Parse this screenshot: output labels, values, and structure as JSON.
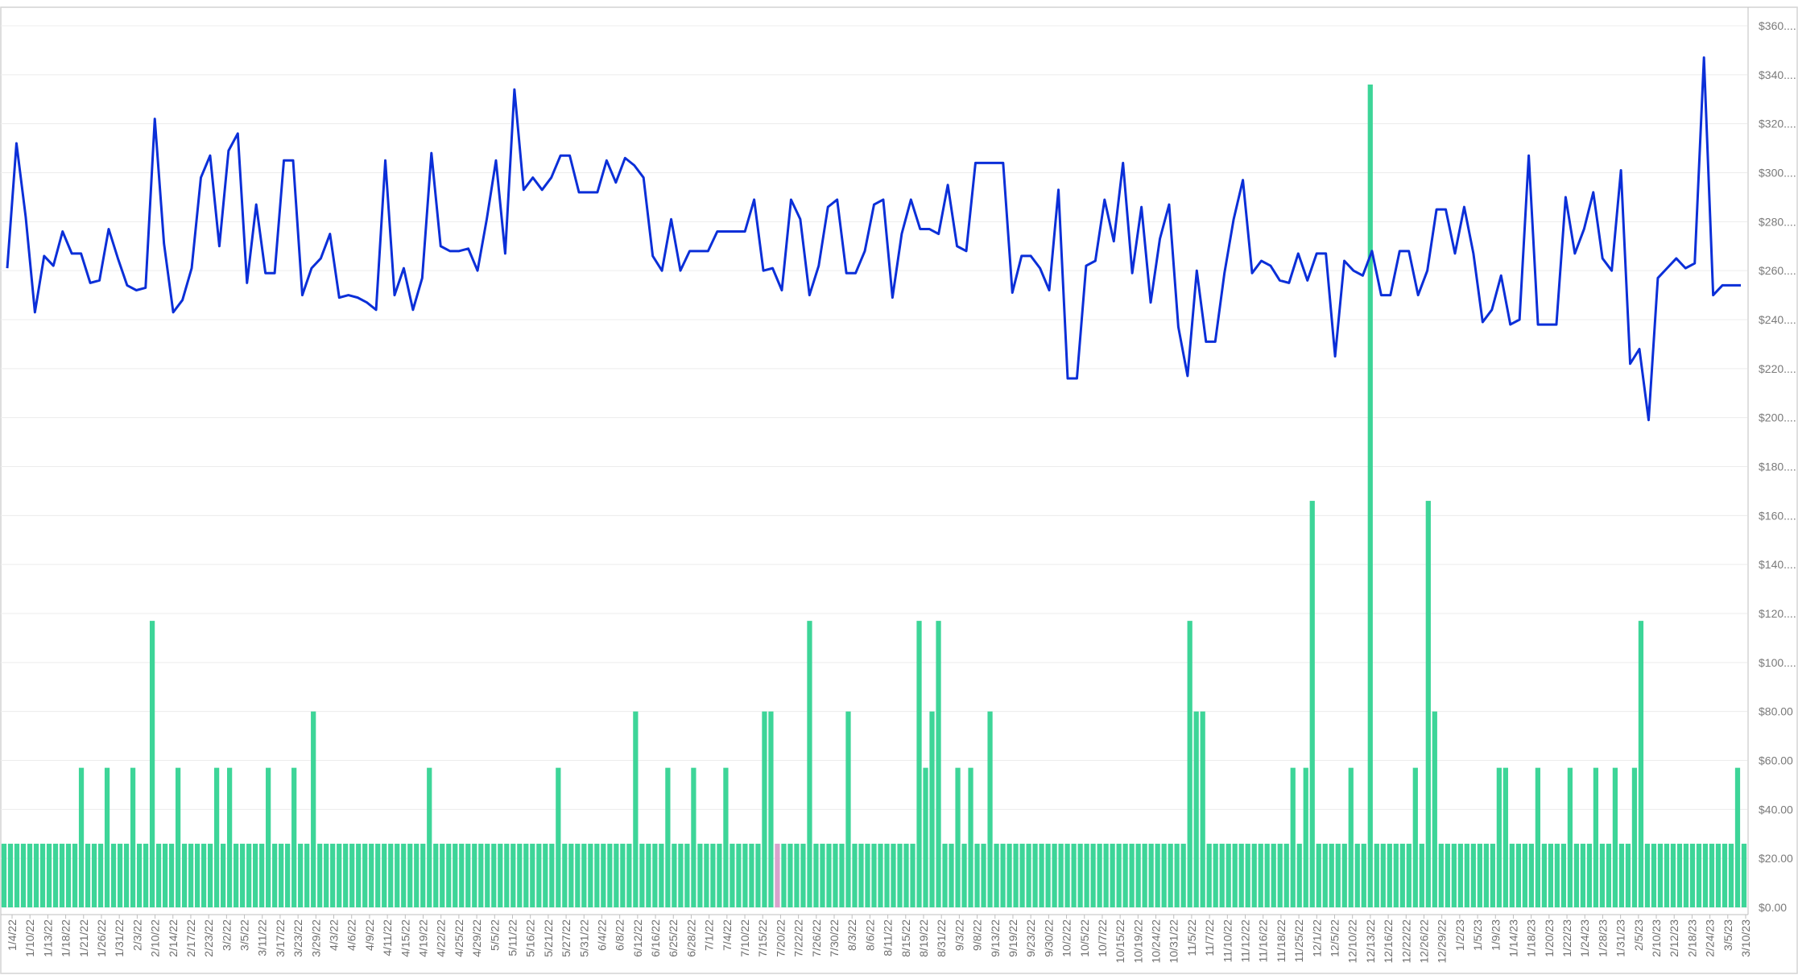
{
  "colors": {
    "bar": "#3dd598",
    "bar_highlight": "#d7a3cc",
    "line": "#0b2fd8",
    "grid": "#ececec",
    "axis_text": "#7a7a7a"
  },
  "chart_data": {
    "type": "bar",
    "title": "",
    "xlabel": "",
    "ylabel": "",
    "ylim": [
      0,
      360
    ],
    "grid": true,
    "legend": "none",
    "yaxis_side": "right",
    "yticks": [
      "$0.00",
      "$20.00",
      "$40.00",
      "$60.00",
      "$80.00",
      "$100....",
      "$120....",
      "$140....",
      "$160....",
      "$180....",
      "$200....",
      "$220....",
      "$240....",
      "$260....",
      "$280....",
      "$300....",
      "$320....",
      "$340....",
      "$360...."
    ],
    "xtick_labels": [
      "1/4/22",
      "1/10/22",
      "1/13/22",
      "1/18/22",
      "1/21/22",
      "1/26/22",
      "1/31/22",
      "2/3/22",
      "2/10/22",
      "2/14/22",
      "2/17/22",
      "2/23/22",
      "3/2/22",
      "3/5/22",
      "3/11/22",
      "3/17/22",
      "3/23/22",
      "3/29/22",
      "4/3/22",
      "4/6/22",
      "4/9/22",
      "4/11/22",
      "4/15/22",
      "4/19/22",
      "4/22/22",
      "4/25/22",
      "4/29/22",
      "5/5/22",
      "5/11/22",
      "5/16/22",
      "5/21/22",
      "5/27/22",
      "5/31/22",
      "6/4/22",
      "6/8/22",
      "6/12/22",
      "6/16/22",
      "6/25/22",
      "6/28/22",
      "7/1/22",
      "7/4/22",
      "7/10/22",
      "7/15/22",
      "7/20/22",
      "7/22/22",
      "7/26/22",
      "7/30/22",
      "8/3/22",
      "8/6/22",
      "8/11/22",
      "8/15/22",
      "8/19/22",
      "8/31/22",
      "9/3/22",
      "9/8/22",
      "9/13/22",
      "9/19/22",
      "9/23/22",
      "9/30/22",
      "10/2/22",
      "10/5/22",
      "10/7/22",
      "10/15/22",
      "10/19/22",
      "10/24/22",
      "10/31/22",
      "11/5/22",
      "11/7/22",
      "11/10/22",
      "11/12/22",
      "11/16/22",
      "11/18/22",
      "11/25/22",
      "12/1/22",
      "12/5/22",
      "12/10/22",
      "12/13/22",
      "12/16/22",
      "12/22/22",
      "12/26/22",
      "12/29/22",
      "1/2/23",
      "1/5/23",
      "1/9/23",
      "1/14/23",
      "1/18/23",
      "1/20/23",
      "1/22/23",
      "1/24/23",
      "1/28/23",
      "1/31/23",
      "2/5/23",
      "2/10/23",
      "2/12/23",
      "2/18/23",
      "2/24/23",
      "3/5/23",
      "3/10/23"
    ],
    "bar_values": [
      26,
      26,
      26,
      26,
      26,
      26,
      26,
      26,
      26,
      26,
      26,
      26,
      57,
      26,
      26,
      26,
      57,
      26,
      26,
      26,
      57,
      26,
      26,
      117,
      26,
      26,
      26,
      57,
      26,
      26,
      26,
      26,
      26,
      57,
      26,
      57,
      26,
      26,
      26,
      26,
      26,
      57,
      26,
      26,
      26,
      57,
      26,
      26,
      80,
      26,
      26,
      26,
      26,
      26,
      26,
      26,
      26,
      26,
      26,
      26,
      26,
      26,
      26,
      26,
      26,
      26,
      57,
      26,
      26,
      26,
      26,
      26,
      26,
      26,
      26,
      26,
      26,
      26,
      26,
      26,
      26,
      26,
      26,
      26,
      26,
      26,
      57,
      26,
      26,
      26,
      26,
      26,
      26,
      26,
      26,
      26,
      26,
      26,
      80,
      26,
      26,
      26,
      26,
      57,
      26,
      26,
      26,
      57,
      26,
      26,
      26,
      26,
      57,
      26,
      26,
      26,
      26,
      26,
      80,
      80,
      26,
      26,
      26,
      26,
      26,
      117,
      26,
      26,
      26,
      26,
      26,
      80,
      26,
      26,
      26,
      26,
      26,
      26,
      26,
      26,
      26,
      26,
      117,
      57,
      80,
      117,
      26,
      26,
      57,
      26,
      57,
      26,
      26,
      80,
      26,
      26,
      26,
      26,
      26,
      26,
      26,
      26,
      26,
      26,
      26,
      26,
      26,
      26,
      26,
      26,
      26,
      26,
      26,
      26,
      26,
      26,
      26,
      26,
      26,
      26,
      26,
      26,
      26,
      26,
      117,
      80,
      80,
      26,
      26,
      26,
      26,
      26,
      26,
      26,
      26,
      26,
      26,
      26,
      26,
      26,
      57,
      26,
      57,
      166,
      26,
      26,
      26,
      26,
      26,
      57,
      26,
      26,
      336,
      26,
      26,
      26,
      26,
      26,
      26,
      57,
      26,
      166,
      80,
      26,
      26,
      26,
      26,
      26,
      26,
      26,
      26,
      26,
      57,
      57,
      26,
      26,
      26,
      26,
      57,
      26,
      26,
      26,
      26,
      57,
      26,
      26,
      26,
      57,
      26,
      26,
      57,
      26,
      26,
      57,
      117,
      26,
      26,
      26,
      26,
      26,
      26,
      26,
      26,
      26,
      26,
      26,
      26,
      26,
      26,
      57,
      26
    ],
    "highlight_index": 120,
    "line_values": [
      261,
      312,
      282,
      243,
      266,
      262,
      276,
      267,
      267,
      255,
      256,
      277,
      265,
      254,
      252,
      253,
      322,
      271,
      243,
      248,
      261,
      298,
      307,
      270,
      309,
      316,
      255,
      287,
      259,
      259,
      305,
      305,
      250,
      261,
      265,
      275,
      249,
      250,
      249,
      247,
      244,
      305,
      250,
      261,
      244,
      257,
      308,
      270,
      268,
      268,
      269,
      260,
      281,
      305,
      267,
      334,
      293,
      298,
      293,
      298,
      307,
      307,
      292,
      292,
      292,
      305,
      296,
      306,
      303,
      298,
      266,
      260,
      281,
      260,
      268,
      268,
      268,
      276,
      276,
      276,
      276,
      289,
      260,
      261,
      252,
      289,
      281,
      250,
      262,
      286,
      289,
      259,
      259,
      268,
      287,
      289,
      249,
      275,
      289,
      277,
      277,
      275,
      295,
      270,
      268,
      304,
      304,
      304,
      304,
      251,
      266,
      266,
      261,
      252,
      293,
      216,
      216,
      262,
      264,
      289,
      272,
      304,
      259,
      286,
      247,
      273,
      287,
      237,
      217,
      260,
      231,
      231,
      259,
      281,
      297,
      259,
      264,
      262,
      256,
      255,
      267,
      256,
      267,
      267,
      225,
      264,
      260,
      258,
      268,
      250,
      250,
      268,
      268,
      250,
      260,
      285,
      285,
      267,
      286,
      267,
      239,
      244,
      258,
      238,
      240,
      307,
      238,
      238,
      238,
      290,
      267,
      277,
      292,
      265,
      260,
      301,
      222,
      228,
      199,
      257,
      261,
      265,
      261,
      263,
      347,
      250,
      254,
      254,
      254
    ]
  }
}
